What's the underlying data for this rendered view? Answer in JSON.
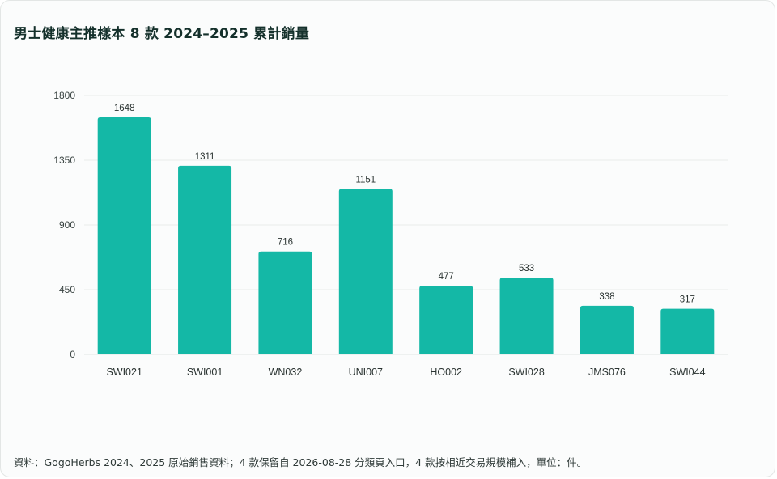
{
  "chart_data": {
    "type": "bar",
    "title": "男士健康主推樣本 8 款 2024–2025 累計銷量",
    "categories": [
      "SWI021",
      "SWI001",
      "WN032",
      "UNI007",
      "HO002",
      "SWI028",
      "JMS076",
      "SWI044"
    ],
    "values": [
      1648,
      1311,
      716,
      1151,
      477,
      533,
      338,
      317
    ],
    "yticks": [
      0,
      450,
      900,
      1350,
      1800
    ],
    "ylim": [
      0,
      1800
    ],
    "xlabel": "",
    "ylabel": "",
    "grid": true,
    "legend": "none",
    "bar_color": "#14b8a6"
  },
  "footnote": "資料：GogoHerbs 2024、2025 原始銷售資料；4 款保留自 2026-08-28 分類頁入口，4 款按相近交易規模補入，單位：件。"
}
